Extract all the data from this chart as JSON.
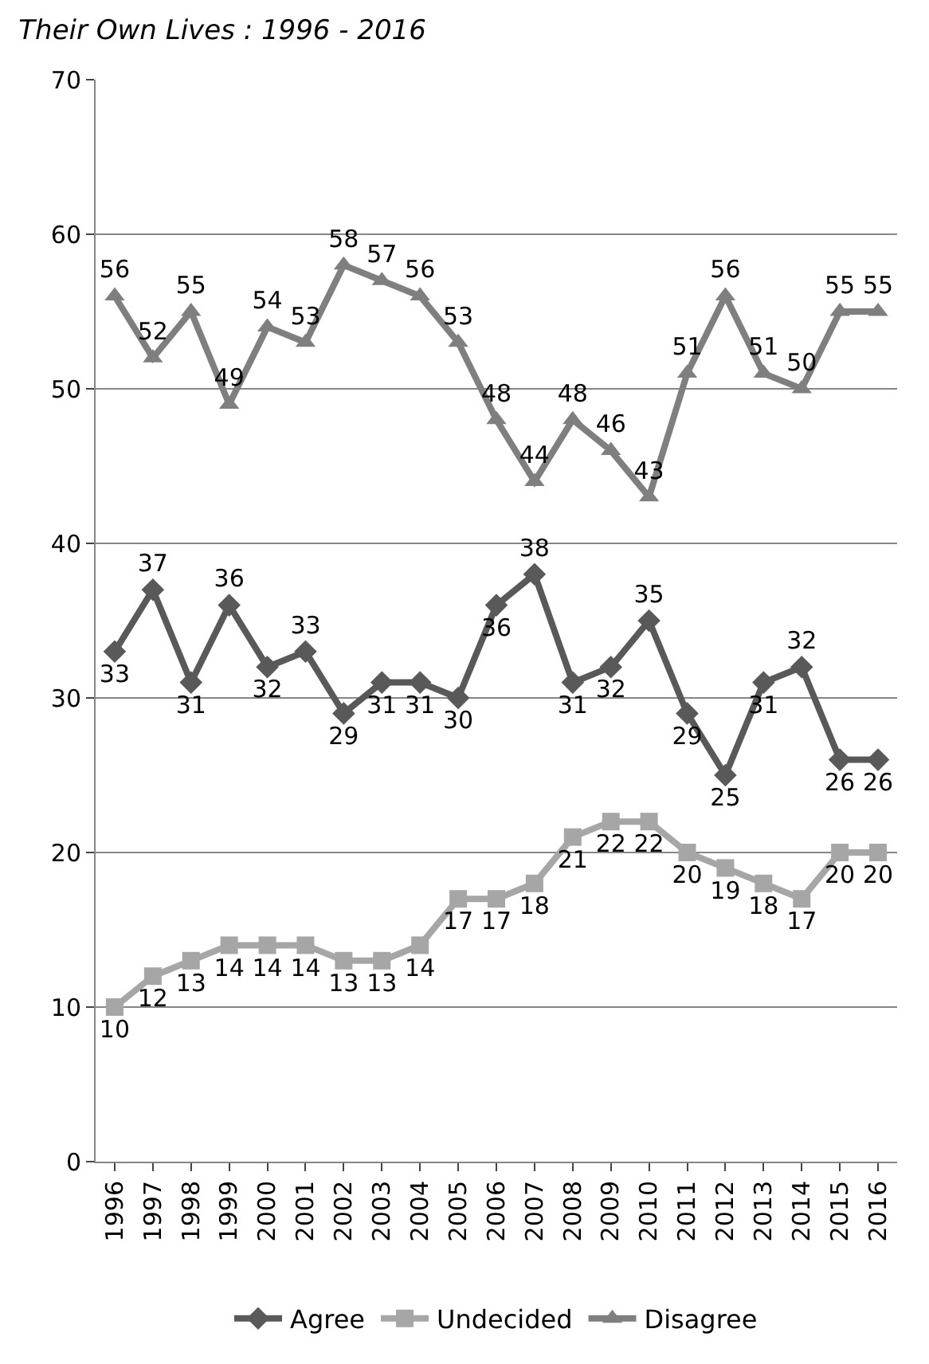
{
  "chart_data": {
    "type": "line",
    "title": "Their Own Lives : 1996 - 2016",
    "categories": [
      "1996",
      "1997",
      "1998",
      "1999",
      "2000",
      "2001",
      "2002",
      "2003",
      "2004",
      "2005",
      "2006",
      "2007",
      "2008",
      "2009",
      "2010",
      "2011",
      "2012",
      "2013",
      "2014",
      "2015",
      "2016"
    ],
    "series": [
      {
        "name": "Agree",
        "color": "#595959",
        "marker": "diamond",
        "values": [
          33,
          37,
          31,
          36,
          32,
          33,
          29,
          31,
          31,
          30,
          36,
          38,
          31,
          32,
          35,
          29,
          25,
          31,
          32,
          26,
          26
        ]
      },
      {
        "name": "Undecided",
        "color": "#a6a6a6",
        "marker": "square",
        "values": [
          10,
          12,
          13,
          14,
          14,
          14,
          13,
          13,
          14,
          17,
          17,
          18,
          21,
          22,
          22,
          20,
          19,
          18,
          17,
          20,
          20
        ]
      },
      {
        "name": "Disagree",
        "color": "#7f7f7f",
        "marker": "triangle",
        "values": [
          56,
          52,
          55,
          49,
          54,
          53,
          58,
          57,
          56,
          53,
          48,
          44,
          48,
          46,
          43,
          51,
          56,
          51,
          50,
          55,
          55
        ]
      }
    ],
    "ylim": [
      0,
      70
    ],
    "yticks": [
      0,
      10,
      20,
      30,
      40,
      50,
      60,
      70
    ],
    "grid": "y",
    "legend": "bottom",
    "data_labels": true,
    "line_style": "solid"
  }
}
